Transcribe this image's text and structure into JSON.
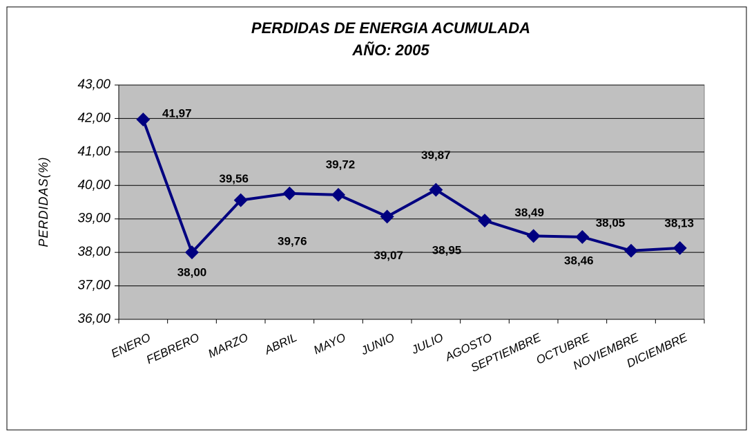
{
  "chart_data": {
    "type": "line",
    "title": "PERDIDAS DE ENERGIA ACUMULADA",
    "subtitle": "AÑO: 2005",
    "y_label": "PERDIDAS(%)",
    "categories": [
      "ENERO",
      "FEBRERO",
      "MARZO",
      "ABRIL",
      "MAYO",
      "JUNIO",
      "JULIO",
      "AGOSTO",
      "SEPTIEMBRE",
      "OCTUBRE",
      "NOVIEMBRE",
      "DICIEMBRE"
    ],
    "series": [
      {
        "name": "PERDIDAS",
        "color": "#000080",
        "values": [
          41.97,
          38.0,
          39.56,
          39.76,
          39.72,
          39.07,
          39.87,
          38.95,
          38.49,
          38.46,
          38.05,
          38.13
        ],
        "value_labels": [
          "41,97",
          "38,00",
          "39,56",
          "39,76",
          "39,72",
          "39,07",
          "39,87",
          "38,95",
          "38,49",
          "38,46",
          "38,05",
          "38,13"
        ]
      }
    ],
    "ylim": [
      36,
      43
    ],
    "yticks": [
      {
        "value": 36,
        "label": "36,00"
      },
      {
        "value": 37,
        "label": "37,00"
      },
      {
        "value": 38,
        "label": "38,00"
      },
      {
        "value": 39,
        "label": "39,00"
      },
      {
        "value": 40,
        "label": "40,00"
      },
      {
        "value": 41,
        "label": "41,00"
      },
      {
        "value": 42,
        "label": "42,00"
      },
      {
        "value": 43,
        "label": "43,00"
      }
    ],
    "grid": true,
    "plot_background": "#c0c0c0"
  }
}
